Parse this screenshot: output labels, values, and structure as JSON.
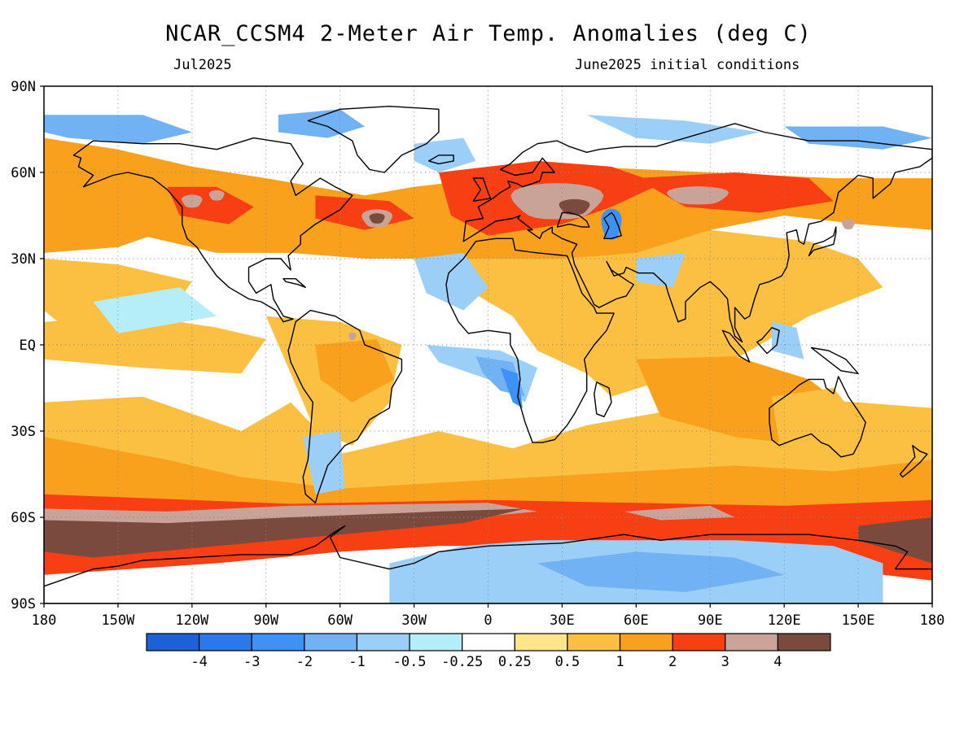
{
  "title": "NCAR_CCSM4 2-Meter Air Temp. Anomalies (deg C)",
  "subtitle_left": "Jul2025",
  "subtitle_right": "June2025 initial conditions",
  "map": {
    "projection": "cylindrical equidistant",
    "lon_range": [
      -180,
      180
    ],
    "lat_range": [
      -90,
      90
    ],
    "lat_tick_labels": [
      "90N",
      "60N",
      "30N",
      "EQ",
      "30S",
      "60S",
      "90S"
    ],
    "lon_tick_labels": [
      "180",
      "150W",
      "120W",
      "90W",
      "60W",
      "30W",
      "0",
      "30E",
      "60E",
      "90E",
      "120E",
      "150E",
      "180"
    ],
    "gridlines": "dotted",
    "background_color": "#ffffff"
  },
  "colorbar": {
    "colors": [
      "#1a62d6",
      "#2a78ea",
      "#3d93f5",
      "#71b2f5",
      "#9ccff8",
      "#b5eef8",
      "#ffffff",
      "#fde68a",
      "#fbc041",
      "#f9a11c",
      "#f83e13",
      "#c9a298",
      "#7a4a3f"
    ],
    "labels": [
      "-4",
      "-3",
      "-2",
      "-1",
      "-0.5",
      "-0.25",
      "0.25",
      "0.5",
      "1",
      "2",
      "3",
      "4"
    ]
  },
  "features": [
    {
      "name": "Southern Ocean warm band",
      "level": 4,
      "lon": [
        -180,
        180
      ],
      "lat": [
        -75,
        -57
      ]
    },
    {
      "name": "Eastern Europe warm anomaly",
      "level": 3,
      "lon": [
        10,
        45
      ],
      "lat": [
        43,
        58
      ]
    },
    {
      "name": "Antarctica cool anomaly",
      "level": -0.5,
      "lon": [
        0,
        160
      ],
      "lat": [
        -90,
        -66
      ]
    },
    {
      "name": "North Atlantic warm spot",
      "level": 4,
      "lon": [
        -50,
        -40
      ],
      "lat": [
        40,
        48
      ]
    },
    {
      "name": "Caspian cool spot",
      "level": -2,
      "lon": [
        46,
        54
      ],
      "lat": [
        36,
        46
      ]
    }
  ]
}
